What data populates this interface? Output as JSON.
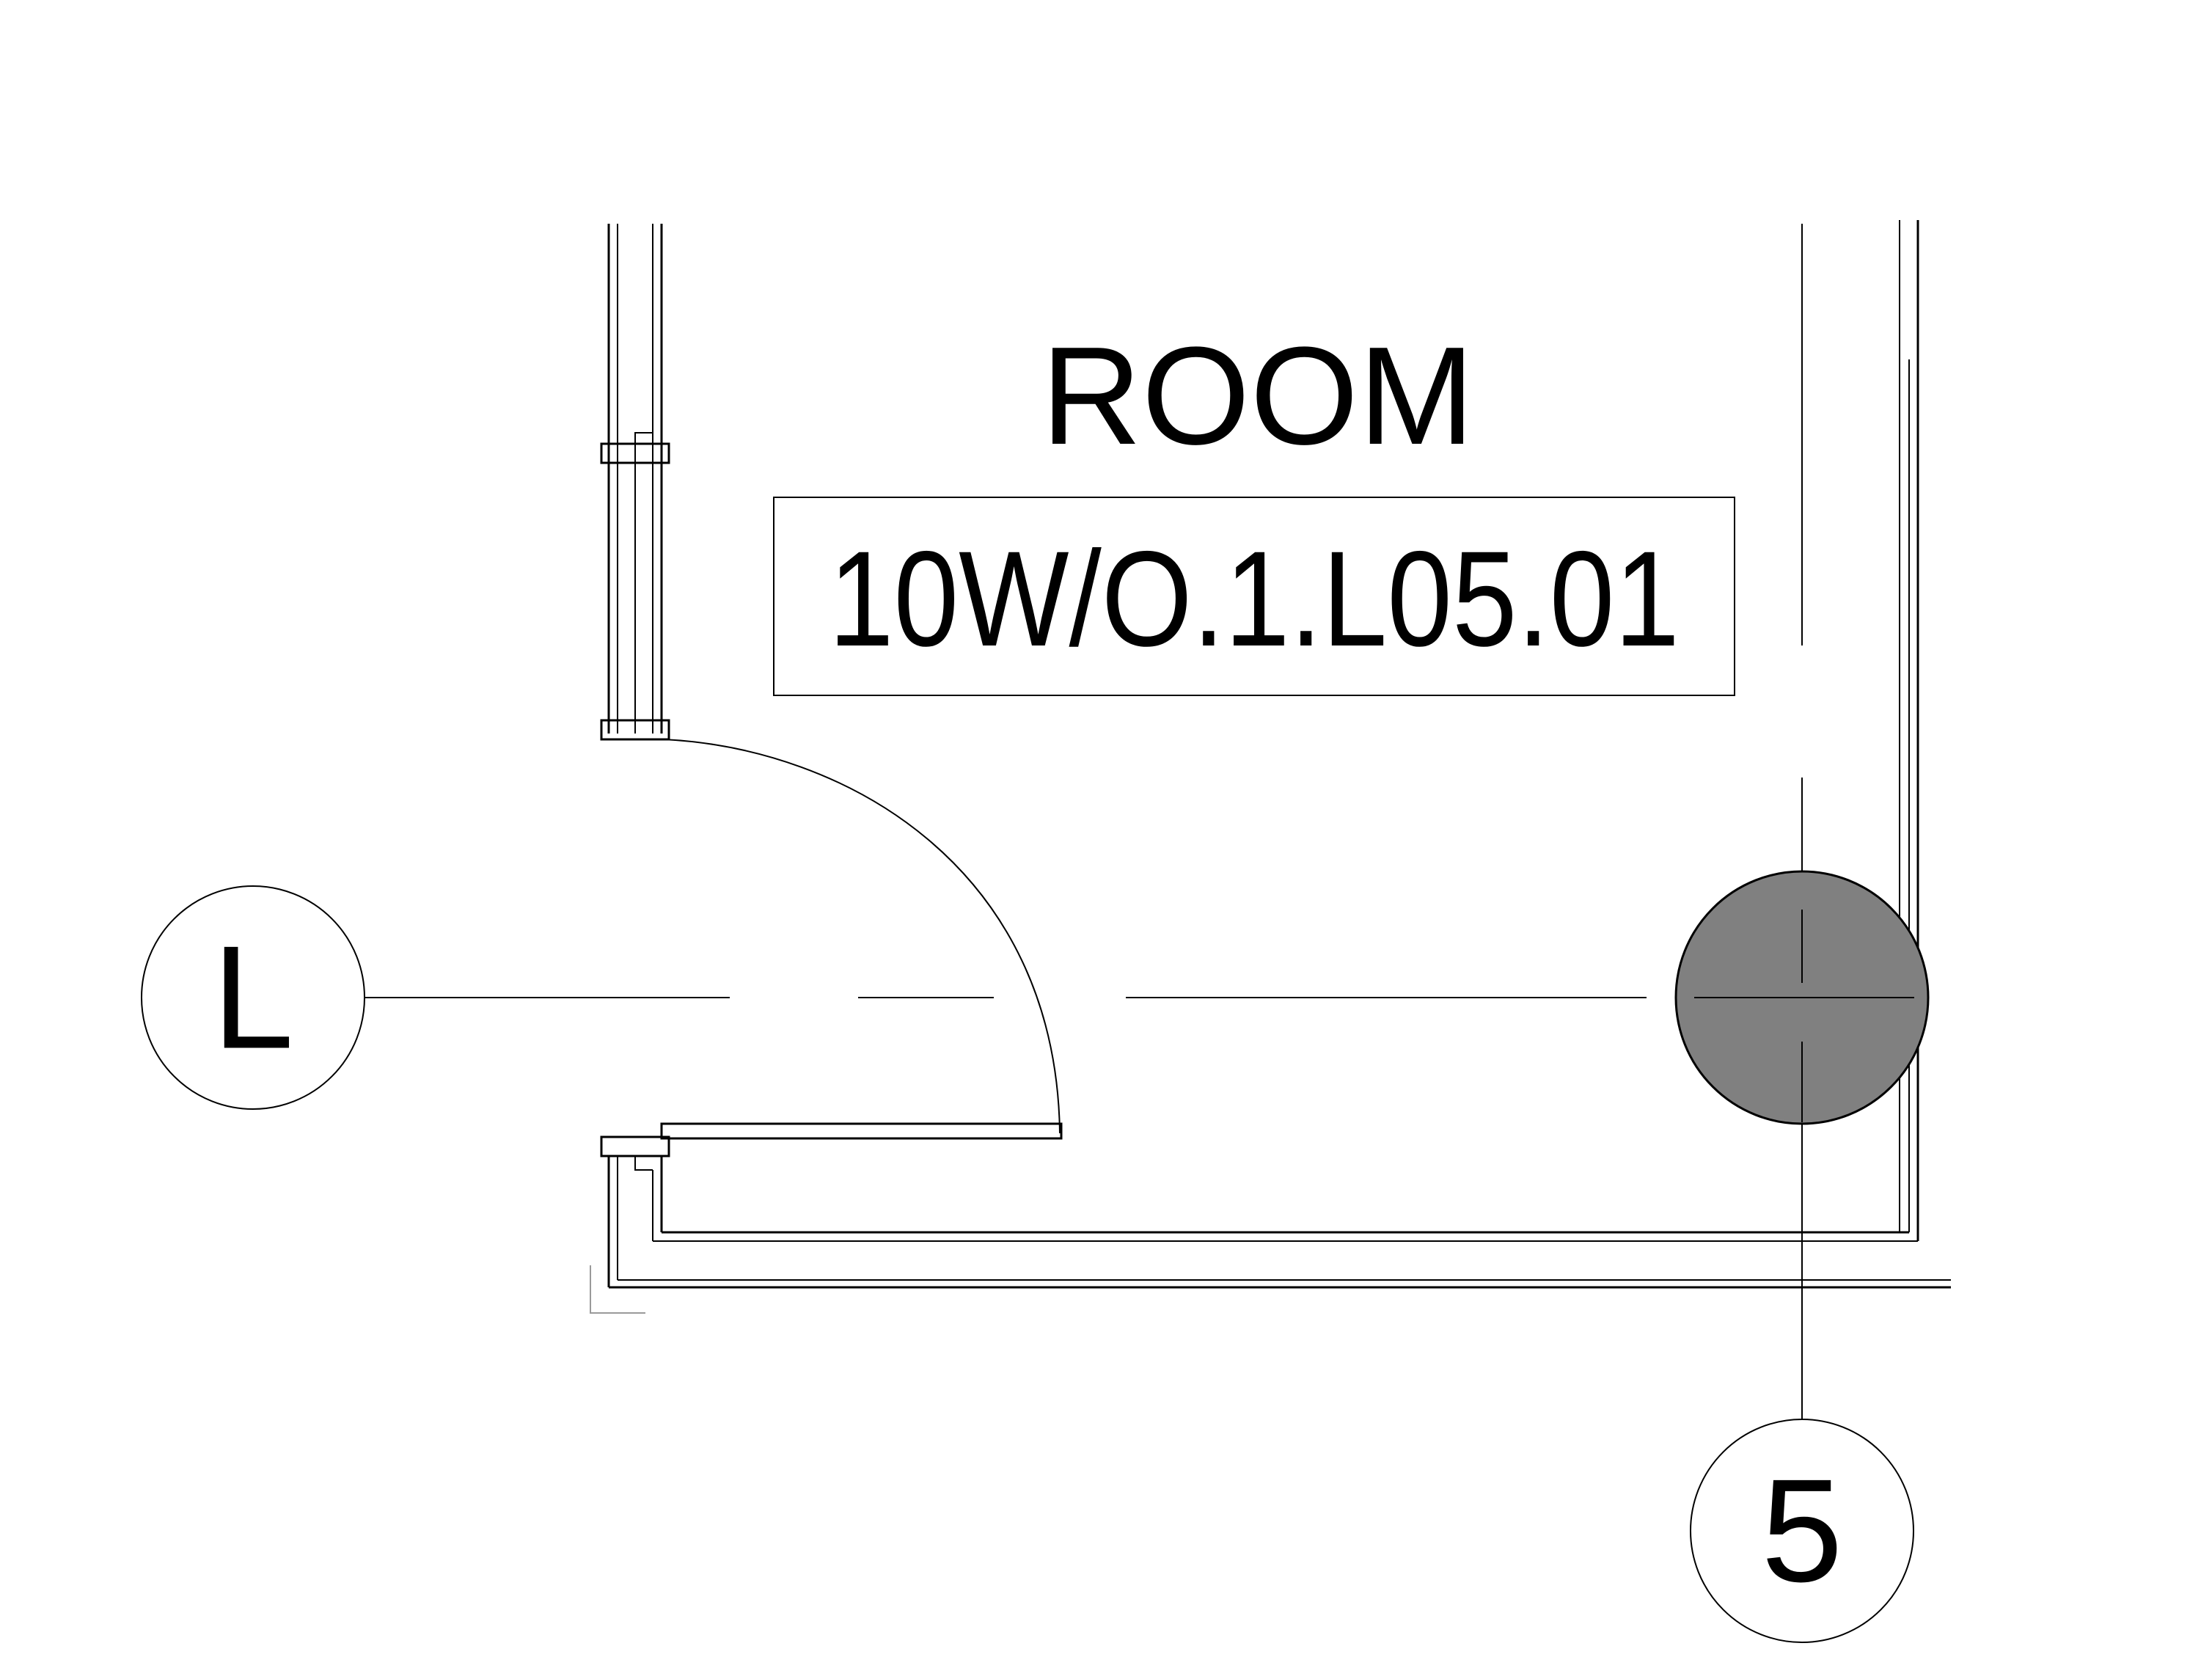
{
  "room": {
    "title": "ROOM",
    "number": "10W/O.1.L05.01"
  },
  "grid": {
    "row_label": "L",
    "column_label": "5"
  },
  "colors": {
    "line": "#000000",
    "column_fill": "#808080",
    "background": "#ffffff"
  }
}
